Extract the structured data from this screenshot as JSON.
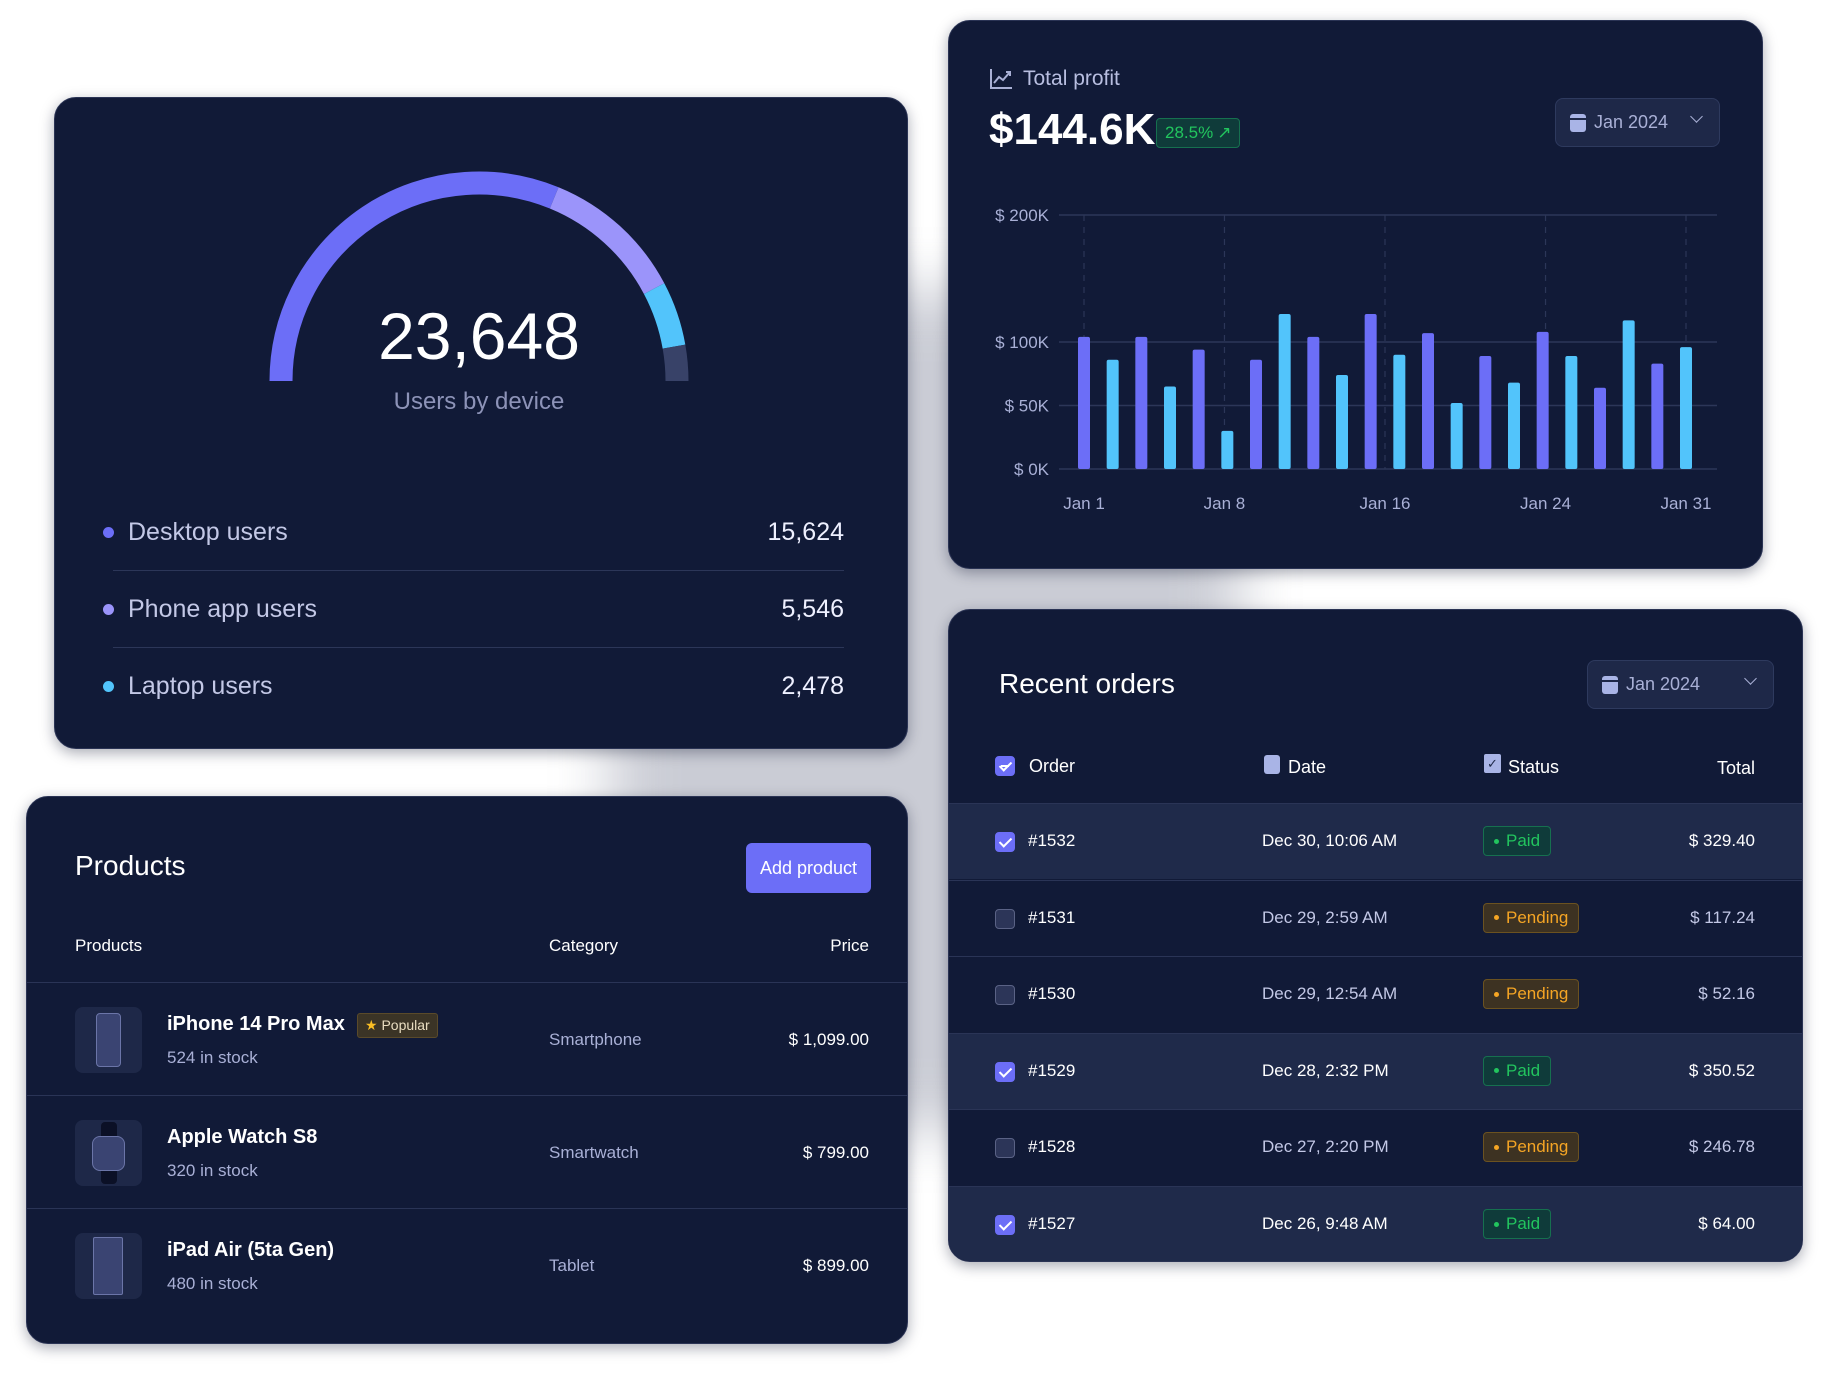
{
  "users_card": {
    "total": "23,648",
    "subtitle": "Users by device",
    "items": [
      {
        "label": "Desktop users",
        "value": "15,624",
        "count": 15624,
        "color": "#6c6ef7"
      },
      {
        "label": "Phone app users",
        "value": "5,546",
        "count": 5546,
        "color": "#9b94fa"
      },
      {
        "label": "Laptop users",
        "value": "2,478",
        "count": 2478,
        "color": "#52c4fb"
      }
    ],
    "remainder_color": "#384268"
  },
  "profit_card": {
    "title": "Total profit",
    "icon": "trend-chart-icon",
    "amount": "$144.6K",
    "change": "28.5%",
    "change_icon": "arrow-up-right-icon",
    "period": "Jan 2024"
  },
  "chart_data": {
    "type": "bar",
    "ylim": [
      0,
      200
    ],
    "yticks": [
      {
        "v": 0,
        "label": "$ 0K"
      },
      {
        "v": 50,
        "label": "$ 50K"
      },
      {
        "v": 100,
        "label": "$ 100K"
      },
      {
        "v": 200,
        "label": "$ 200K"
      }
    ],
    "xticks": [
      {
        "day": 1,
        "label": "Jan 1"
      },
      {
        "day": 8,
        "label": "Jan 8"
      },
      {
        "day": 16,
        "label": "Jan 16"
      },
      {
        "day": 24,
        "label": "Jan 24"
      },
      {
        "day": 31,
        "label": "Jan 31"
      }
    ],
    "values": [
      104,
      86,
      104,
      65,
      94,
      30,
      86,
      122,
      104,
      74,
      122,
      90,
      107,
      52,
      89,
      68,
      108,
      89,
      64,
      117,
      83,
      96
    ],
    "colors": [
      "#6c6ef7",
      "#52c4fb"
    ],
    "grid": true,
    "units": "$K"
  },
  "orders_card": {
    "title": "Recent orders",
    "period": "Jan 2024",
    "columns": {
      "order": "Order",
      "date": "Date",
      "status": "Status",
      "total": "Total"
    },
    "rows": [
      {
        "id": "#1532",
        "date": "Dec 30, 10:06 AM",
        "status": "Paid",
        "total": "$ 329.40",
        "checked": true
      },
      {
        "id": "#1531",
        "date": "Dec 29, 2:59 AM",
        "status": "Pending",
        "total": "$ 117.24",
        "checked": false
      },
      {
        "id": "#1530",
        "date": "Dec 29, 12:54 AM",
        "status": "Pending",
        "total": "$ 52.16",
        "checked": false
      },
      {
        "id": "#1529",
        "date": "Dec 28, 2:32 PM",
        "status": "Paid",
        "total": "$ 350.52",
        "checked": true
      },
      {
        "id": "#1528",
        "date": "Dec 27, 2:20 PM",
        "status": "Pending",
        "total": "$ 246.78",
        "checked": false
      },
      {
        "id": "#1527",
        "date": "Dec 26, 9:48 AM",
        "status": "Paid",
        "total": "$ 64.00",
        "checked": true
      }
    ]
  },
  "products_card": {
    "title": "Products",
    "add_button": "Add product",
    "columns": {
      "product": "Products",
      "category": "Category",
      "price": "Price"
    },
    "popular_label": "Popular",
    "rows": [
      {
        "name": "iPhone 14 Pro Max",
        "stock": "524 in stock",
        "category": "Smartphone",
        "price": "$ 1,099.00",
        "popular": true,
        "icon": "phone-icon"
      },
      {
        "name": "Apple Watch S8",
        "stock": "320 in stock",
        "category": "Smartwatch",
        "price": "$ 799.00",
        "popular": false,
        "icon": "watch-icon"
      },
      {
        "name": "iPad Air (5ta Gen)",
        "stock": "480 in stock",
        "category": "Tablet",
        "price": "$ 899.00",
        "popular": false,
        "icon": "tablet-icon"
      }
    ]
  }
}
